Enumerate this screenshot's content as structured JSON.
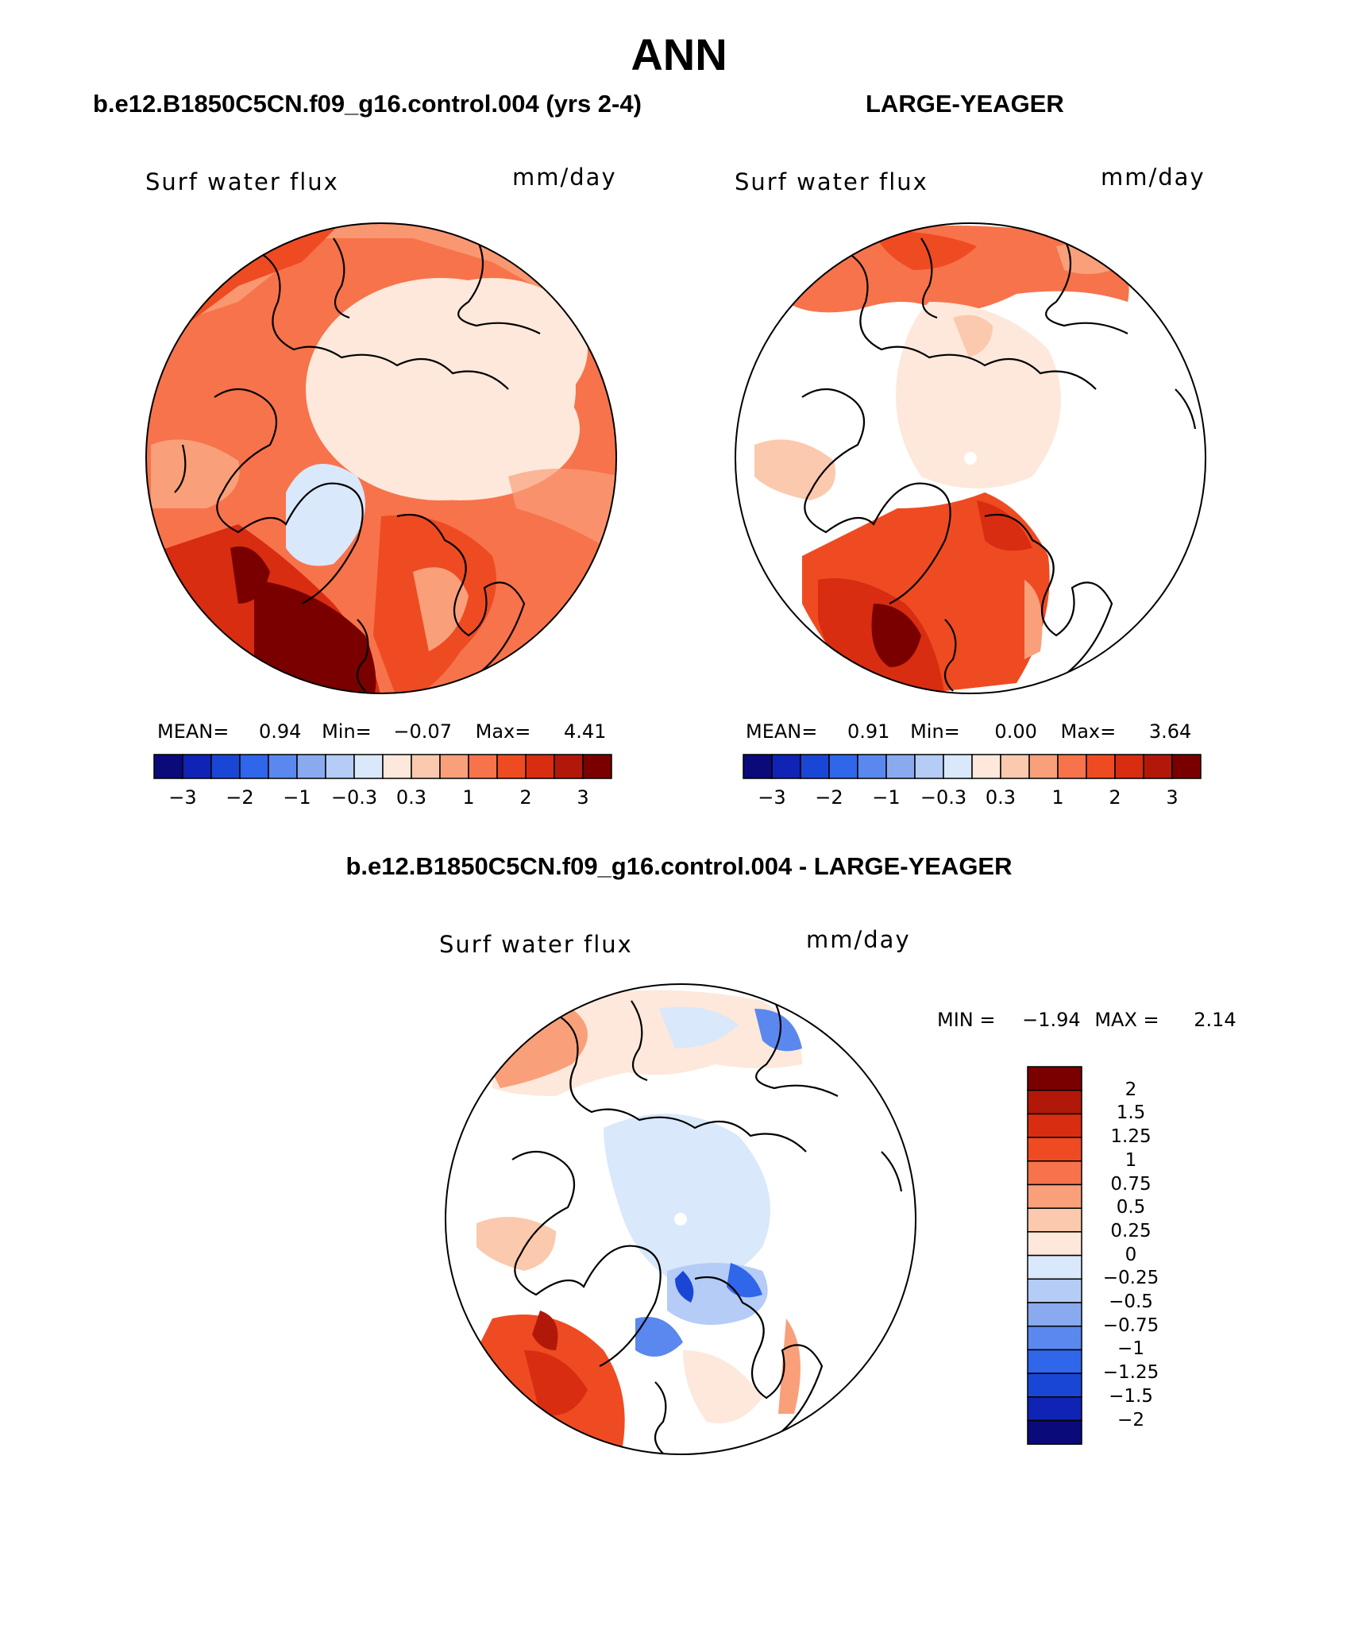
{
  "title": "ANN",
  "panels": {
    "left": {
      "case": "b.e12.B1850C5CN.f09_g16.control.004 (yrs 2-4)",
      "variable": "Surf water flux",
      "units": "mm/day",
      "stats": {
        "mean_label": "MEAN=",
        "mean": "0.94",
        "min_label": "Min=",
        "min": "−0.07",
        "max_label": "Max=",
        "max": "4.41"
      }
    },
    "right": {
      "case": "LARGE-YEAGER",
      "variable": "Surf water flux",
      "units": "mm/day",
      "stats": {
        "mean_label": "MEAN=",
        "mean": "0.91",
        "min_label": "Min=",
        "min": "0.00",
        "max_label": "Max=",
        "max": "3.64"
      }
    },
    "diff": {
      "case": "b.e12.B1850C5CN.f09_g16.control.004 - LARGE-YEAGER",
      "variable": "Surf water flux",
      "units": "mm/day",
      "minmax": {
        "min_label": "MIN =",
        "min": "−1.94",
        "max_label": "MAX =",
        "max": "2.14"
      }
    }
  },
  "colorbar_top": {
    "colors": [
      "#0a0a7a",
      "#0f23b4",
      "#1a46d6",
      "#2f66ea",
      "#5a88ee",
      "#8aaaf0",
      "#b4ccf6",
      "#d9e8fb",
      "#fde8db",
      "#fbc9ad",
      "#f9a07a",
      "#f7734b",
      "#ef4b22",
      "#d82d11",
      "#b2180a",
      "#7a0000"
    ],
    "tick_labels": [
      "−3",
      "−2",
      "−1",
      "−0.3",
      "0.3",
      "1",
      "2",
      "3"
    ]
  },
  "colorbar_diff": {
    "colors": [
      "#7a0000",
      "#b2180a",
      "#d82d11",
      "#ef4b22",
      "#f7734b",
      "#f9a07a",
      "#fbc9ad",
      "#fde8db",
      "#d9e8fb",
      "#b4ccf6",
      "#8aaaf0",
      "#5a88ee",
      "#2f66ea",
      "#1a46d6",
      "#0f23b4",
      "#0a0a7a"
    ],
    "tick_labels": [
      "2",
      "1.5",
      "1.25",
      "1",
      "0.75",
      "0.5",
      "0.25",
      "0",
      "−0.25",
      "−0.5",
      "−0.75",
      "−1",
      "−1.25",
      "−1.5",
      "−2"
    ]
  }
}
